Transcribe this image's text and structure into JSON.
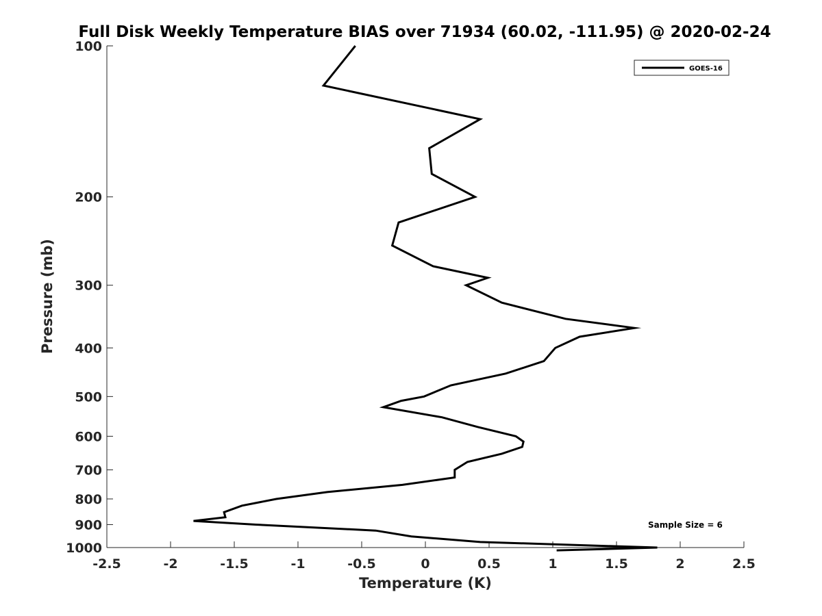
{
  "chart_data": {
    "type": "line",
    "title": "Full Disk Weekly Temperature BIAS over 71934 (60.02, -111.95) @ 2020-02-24",
    "xlabel": "Temperature (K)",
    "ylabel": "Pressure (mb)",
    "xlim": [
      -2.5,
      2.5
    ],
    "ylim": [
      100,
      1000
    ],
    "y_scale": "log",
    "y_reversed": true,
    "x_ticks": [
      -2.5,
      -2,
      -1.5,
      -1,
      -0.5,
      0,
      0.5,
      1,
      1.5,
      2,
      2.5
    ],
    "x_tick_labels": [
      "-2.5",
      "-2",
      "-1.5",
      "-1",
      "-0.5",
      "0",
      "0.5",
      "1",
      "1.5",
      "2",
      "2.5"
    ],
    "y_ticks": [
      100,
      200,
      300,
      400,
      500,
      600,
      700,
      800,
      900,
      1000
    ],
    "y_tick_labels": [
      "100",
      "200",
      "300",
      "400",
      "500",
      "600",
      "700",
      "800",
      "900",
      "1000"
    ],
    "grid": false,
    "legend_position": "top-right",
    "series": [
      {
        "name": "GOES-16",
        "color": "#000000",
        "points": [
          {
            "x": -0.55,
            "y": 100
          },
          {
            "x": -0.8,
            "y": 120
          },
          {
            "x": 0.43,
            "y": 140
          },
          {
            "x": 0.03,
            "y": 160
          },
          {
            "x": 0.05,
            "y": 180
          },
          {
            "x": 0.39,
            "y": 200
          },
          {
            "x": -0.21,
            "y": 225
          },
          {
            "x": -0.26,
            "y": 250
          },
          {
            "x": 0.06,
            "y": 275
          },
          {
            "x": 0.49,
            "y": 290
          },
          {
            "x": 0.32,
            "y": 300
          },
          {
            "x": 0.6,
            "y": 325
          },
          {
            "x": 1.1,
            "y": 350
          },
          {
            "x": 1.64,
            "y": 365
          },
          {
            "x": 1.21,
            "y": 380
          },
          {
            "x": 1.02,
            "y": 400
          },
          {
            "x": 0.93,
            "y": 425
          },
          {
            "x": 0.63,
            "y": 450
          },
          {
            "x": 0.2,
            "y": 475
          },
          {
            "x": -0.01,
            "y": 500
          },
          {
            "x": -0.19,
            "y": 510
          },
          {
            "x": -0.33,
            "y": 525
          },
          {
            "x": 0.13,
            "y": 550
          },
          {
            "x": 0.41,
            "y": 575
          },
          {
            "x": 0.71,
            "y": 600
          },
          {
            "x": 0.77,
            "y": 615
          },
          {
            "x": 0.76,
            "y": 630
          },
          {
            "x": 0.6,
            "y": 650
          },
          {
            "x": 0.33,
            "y": 675
          },
          {
            "x": 0.23,
            "y": 700
          },
          {
            "x": 0.23,
            "y": 725
          },
          {
            "x": -0.18,
            "y": 750
          },
          {
            "x": -0.77,
            "y": 775
          },
          {
            "x": -1.17,
            "y": 800
          },
          {
            "x": -1.44,
            "y": 825
          },
          {
            "x": -1.58,
            "y": 850
          },
          {
            "x": -1.57,
            "y": 870
          },
          {
            "x": -1.82,
            "y": 885
          },
          {
            "x": -1.33,
            "y": 900
          },
          {
            "x": -0.39,
            "y": 925
          },
          {
            "x": -0.11,
            "y": 950
          },
          {
            "x": 0.43,
            "y": 975
          },
          {
            "x": 1.82,
            "y": 1000
          },
          {
            "x": 1.03,
            "y": 1013
          }
        ]
      }
    ],
    "annotations": [
      {
        "text": "Sample Size = 6",
        "position": "bottom-right"
      }
    ]
  }
}
